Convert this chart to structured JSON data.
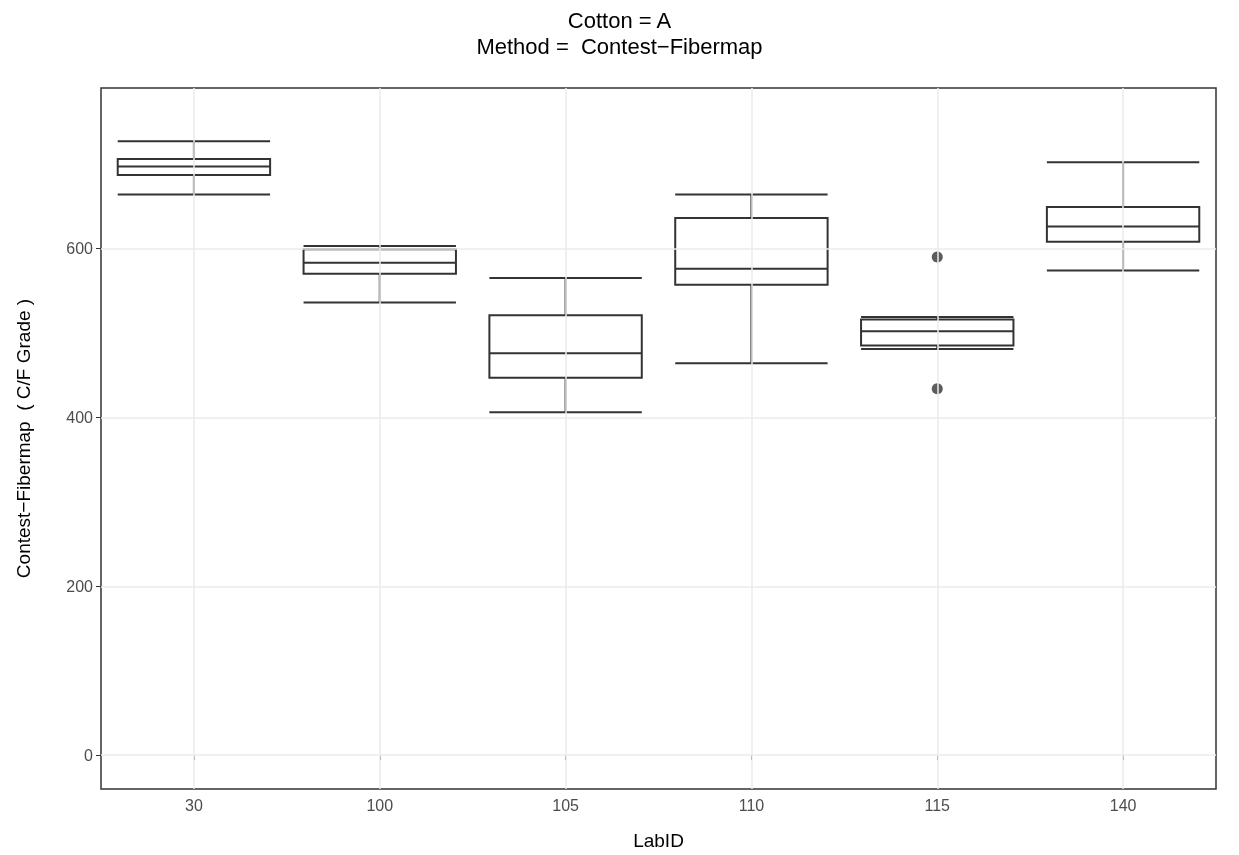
{
  "chart_data": {
    "type": "box",
    "title": "Cotton = A",
    "subtitle": "Method =  Contest−Fibermap",
    "xlabel": "LabID",
    "ylabel": "Contest−Fibermap  ( C/F Grade )",
    "categories": [
      "30",
      "100",
      "105",
      "110",
      "115",
      "140"
    ],
    "boxes": [
      {
        "low": 664,
        "q1": 687,
        "median": 697,
        "q3": 706,
        "high": 727
      },
      {
        "low": 536,
        "q1": 570,
        "median": 583,
        "q3": 599,
        "high": 603
      },
      {
        "low": 406,
        "q1": 447,
        "median": 476,
        "q3": 521,
        "high": 565
      },
      {
        "low": 464,
        "q1": 557,
        "median": 576,
        "q3": 636,
        "high": 664
      },
      {
        "low": 481,
        "q1": 485,
        "median": 502,
        "q3": 516,
        "high": 519,
        "outliers": [
          590,
          434
        ]
      },
      {
        "low": 574,
        "q1": 608,
        "median": 626,
        "q3": 649,
        "high": 702
      }
    ],
    "color": "#333333",
    "ylim": [
      -40,
      790
    ],
    "yticks": [
      0,
      200,
      400,
      600
    ],
    "grid": true
  }
}
